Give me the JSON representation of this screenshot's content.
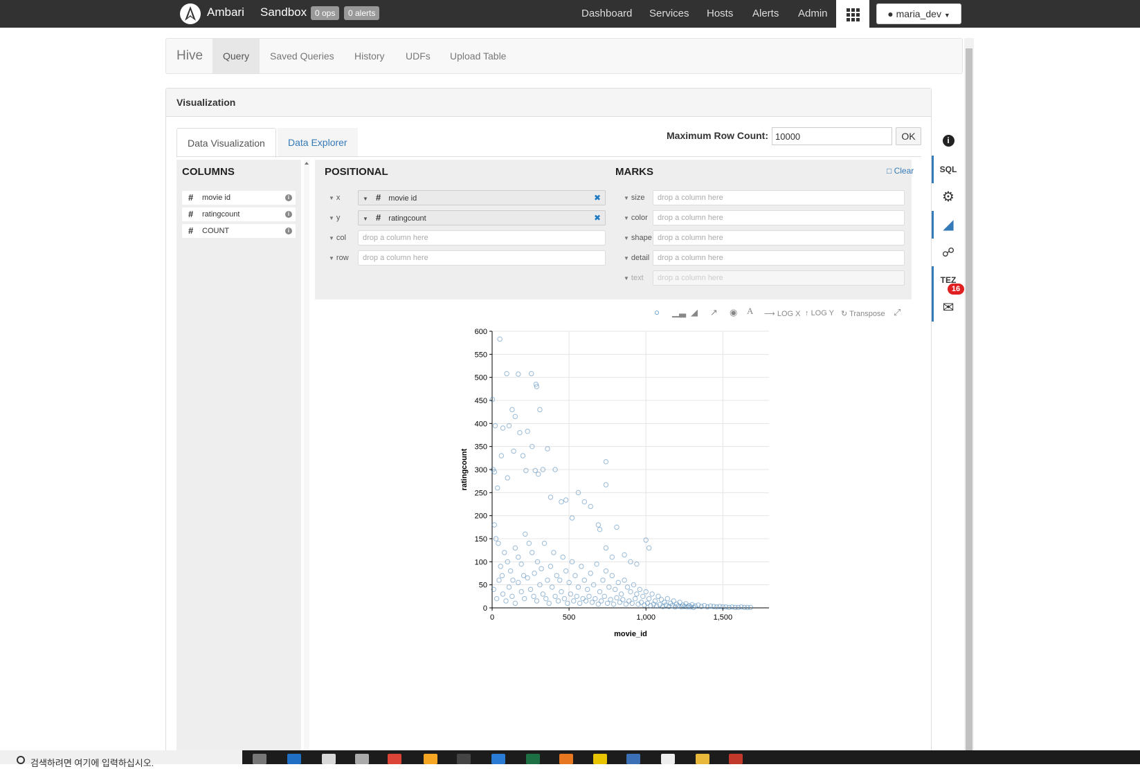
{
  "topnav": {
    "brand": "Ambari",
    "cluster": "Sandbox",
    "ops_badge": "0 ops",
    "alerts_badge": "0 alerts",
    "links": [
      "Dashboard",
      "Services",
      "Hosts",
      "Alerts",
      "Admin"
    ],
    "user": "maria_dev"
  },
  "hive": {
    "title": "Hive",
    "tabs": [
      "Query",
      "Saved Queries",
      "History",
      "UDFs",
      "Upload Table"
    ],
    "active_tab": "Query"
  },
  "visualization": {
    "heading": "Visualization",
    "tabs": [
      "Data Visualization",
      "Data Explorer"
    ],
    "max_row_label": "Maximum Row Count:",
    "max_row_value": "10000",
    "ok_label": "OK"
  },
  "columns": {
    "heading": "COLUMNS",
    "items": [
      "movie id",
      "ratingcount",
      "COUNT"
    ]
  },
  "positional": {
    "heading": "POSITIONAL",
    "shelves": [
      {
        "label": "x",
        "value": "movie id"
      },
      {
        "label": "y",
        "value": "ratingcount"
      },
      {
        "label": "col",
        "value": "drop a column here"
      },
      {
        "label": "row",
        "value": "drop a column here"
      }
    ]
  },
  "marks": {
    "heading": "MARKS",
    "clear_label": "Clear",
    "shelves": [
      {
        "label": "size",
        "value": "drop a column here"
      },
      {
        "label": "color",
        "value": "drop a column here"
      },
      {
        "label": "shape",
        "value": "drop a column here"
      },
      {
        "label": "detail",
        "value": "drop a column here"
      },
      {
        "label": "text",
        "value": "drop a column here"
      }
    ]
  },
  "toolbar": {
    "log_x": "LOG X",
    "log_y": "LOG Y",
    "transpose": "Transpose"
  },
  "sidebar": {
    "sql_label": "SQL",
    "tez_label": "TEZ",
    "mail_count": "16"
  },
  "taskbar": {
    "search_placeholder": "검색하려면 여기에 입력하십시오."
  },
  "chart_data": {
    "type": "scatter",
    "xlabel": "movie_id",
    "ylabel": "ratingcount",
    "xlim": [
      0,
      1800
    ],
    "ylim": [
      0,
      600
    ],
    "xticks": [
      0,
      500,
      1000,
      1500
    ],
    "yticks": [
      0,
      50,
      100,
      150,
      200,
      250,
      300,
      350,
      400,
      450,
      500,
      550,
      600
    ],
    "grid": true,
    "color": "#4682b4",
    "points": [
      [
        50,
        583
      ],
      [
        95,
        508
      ],
      [
        170,
        507
      ],
      [
        255,
        508
      ],
      [
        285,
        485
      ],
      [
        290,
        480
      ],
      [
        2,
        452
      ],
      [
        130,
        430
      ],
      [
        150,
        415
      ],
      [
        310,
        430
      ],
      [
        20,
        395
      ],
      [
        70,
        390
      ],
      [
        110,
        395
      ],
      [
        180,
        380
      ],
      [
        230,
        383
      ],
      [
        360,
        345
      ],
      [
        260,
        350
      ],
      [
        410,
        300
      ],
      [
        740,
        317
      ],
      [
        740,
        267
      ],
      [
        560,
        250
      ],
      [
        330,
        300
      ],
      [
        280,
        298
      ],
      [
        60,
        330
      ],
      [
        140,
        340
      ],
      [
        200,
        330
      ],
      [
        6,
        300
      ],
      [
        15,
        295
      ],
      [
        35,
        260
      ],
      [
        100,
        282
      ],
      [
        220,
        298
      ],
      [
        300,
        290
      ],
      [
        480,
        234
      ],
      [
        380,
        240
      ],
      [
        450,
        230
      ],
      [
        600,
        230
      ],
      [
        640,
        220
      ],
      [
        520,
        195
      ],
      [
        690,
        180
      ],
      [
        810,
        175
      ],
      [
        860,
        115
      ],
      [
        1000,
        147
      ],
      [
        1020,
        130
      ],
      [
        700,
        170
      ],
      [
        740,
        130
      ],
      [
        780,
        110
      ],
      [
        900,
        100
      ],
      [
        940,
        95
      ],
      [
        15,
        180
      ],
      [
        25,
        150
      ],
      [
        40,
        140
      ],
      [
        55,
        90
      ],
      [
        65,
        70
      ],
      [
        80,
        120
      ],
      [
        100,
        100
      ],
      [
        120,
        80
      ],
      [
        135,
        60
      ],
      [
        150,
        130
      ],
      [
        170,
        110
      ],
      [
        190,
        95
      ],
      [
        205,
        70
      ],
      [
        215,
        160
      ],
      [
        240,
        140
      ],
      [
        260,
        120
      ],
      [
        275,
        75
      ],
      [
        295,
        100
      ],
      [
        320,
        85
      ],
      [
        340,
        140
      ],
      [
        360,
        60
      ],
      [
        380,
        90
      ],
      [
        400,
        120
      ],
      [
        420,
        70
      ],
      [
        440,
        60
      ],
      [
        460,
        110
      ],
      [
        480,
        80
      ],
      [
        500,
        55
      ],
      [
        520,
        100
      ],
      [
        540,
        70
      ],
      [
        560,
        45
      ],
      [
        580,
        90
      ],
      [
        600,
        60
      ],
      [
        620,
        40
      ],
      [
        640,
        75
      ],
      [
        660,
        50
      ],
      [
        680,
        95
      ],
      [
        700,
        35
      ],
      [
        720,
        60
      ],
      [
        740,
        80
      ],
      [
        760,
        45
      ],
      [
        780,
        70
      ],
      [
        800,
        40
      ],
      [
        820,
        55
      ],
      [
        840,
        30
      ],
      [
        860,
        60
      ],
      [
        880,
        45
      ],
      [
        900,
        35
      ],
      [
        920,
        50
      ],
      [
        940,
        30
      ],
      [
        960,
        40
      ],
      [
        980,
        25
      ],
      [
        1000,
        35
      ],
      [
        1020,
        20
      ],
      [
        1040,
        30
      ],
      [
        1060,
        15
      ],
      [
        1080,
        25
      ],
      [
        1100,
        18
      ],
      [
        1120,
        12
      ],
      [
        1140,
        20
      ],
      [
        1160,
        10
      ],
      [
        1180,
        15
      ],
      [
        1200,
        8
      ],
      [
        1220,
        12
      ],
      [
        1240,
        6
      ],
      [
        1260,
        9
      ],
      [
        1280,
        5
      ],
      [
        1300,
        7
      ],
      [
        1320,
        4
      ],
      [
        1340,
        6
      ],
      [
        1360,
        3
      ],
      [
        1380,
        5
      ],
      [
        1400,
        2
      ],
      [
        1420,
        4
      ],
      [
        1440,
        3
      ],
      [
        1460,
        2
      ],
      [
        1480,
        3
      ],
      [
        1500,
        2
      ],
      [
        1520,
        2
      ],
      [
        1540,
        1
      ],
      [
        1560,
        2
      ],
      [
        1580,
        1
      ],
      [
        1600,
        1
      ],
      [
        1620,
        2
      ],
      [
        1640,
        1
      ],
      [
        1660,
        1
      ],
      [
        1680,
        1
      ],
      [
        10,
        40
      ],
      [
        30,
        20
      ],
      [
        45,
        60
      ],
      [
        70,
        30
      ],
      [
        90,
        15
      ],
      [
        110,
        45
      ],
      [
        130,
        25
      ],
      [
        150,
        10
      ],
      [
        170,
        55
      ],
      [
        190,
        35
      ],
      [
        210,
        20
      ],
      [
        230,
        65
      ],
      [
        250,
        40
      ],
      [
        270,
        25
      ],
      [
        290,
        15
      ],
      [
        310,
        50
      ],
      [
        330,
        30
      ],
      [
        350,
        20
      ],
      [
        370,
        10
      ],
      [
        390,
        45
      ],
      [
        410,
        25
      ],
      [
        430,
        15
      ],
      [
        450,
        35
      ],
      [
        470,
        20
      ],
      [
        490,
        10
      ],
      [
        510,
        30
      ],
      [
        530,
        15
      ],
      [
        550,
        25
      ],
      [
        570,
        10
      ],
      [
        590,
        20
      ],
      [
        610,
        15
      ],
      [
        630,
        25
      ],
      [
        650,
        12
      ],
      [
        670,
        20
      ],
      [
        690,
        8
      ],
      [
        710,
        15
      ],
      [
        730,
        25
      ],
      [
        750,
        10
      ],
      [
        770,
        18
      ],
      [
        790,
        8
      ],
      [
        810,
        22
      ],
      [
        830,
        12
      ],
      [
        850,
        18
      ],
      [
        870,
        8
      ],
      [
        890,
        15
      ],
      [
        910,
        10
      ],
      [
        930,
        20
      ],
      [
        950,
        8
      ],
      [
        970,
        12
      ],
      [
        990,
        6
      ],
      [
        1010,
        10
      ],
      [
        1030,
        5
      ],
      [
        1050,
        8
      ],
      [
        1070,
        4
      ],
      [
        1090,
        7
      ],
      [
        1110,
        3
      ],
      [
        1130,
        6
      ],
      [
        1150,
        3
      ],
      [
        1170,
        5
      ],
      [
        1190,
        2
      ],
      [
        1210,
        4
      ],
      [
        1230,
        2
      ],
      [
        1250,
        3
      ],
      [
        1270,
        2
      ],
      [
        1290,
        2
      ],
      [
        1310,
        1
      ]
    ]
  }
}
